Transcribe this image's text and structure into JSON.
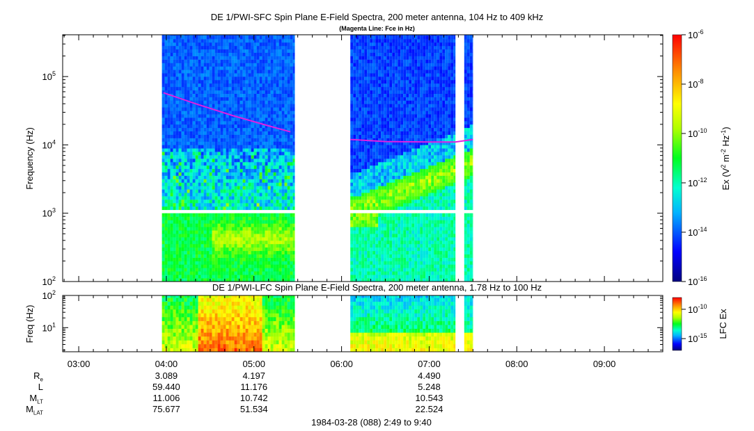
{
  "chart_data": [
    {
      "type": "heatmap",
      "title": "DE 1/PWI-SFC  Spin Plane E-Field Spectra, 200 meter antenna, 104 Hz to 409 kHz",
      "subtitle": "(Magenta Line: Fce in Hz)",
      "ylabel": "Frequency (Hz)",
      "yscale": "log",
      "ylim": [
        100,
        409000
      ],
      "yticks": [
        "10^2",
        "10^3",
        "10^4",
        "10^5"
      ],
      "xlim": [
        "02:49",
        "09:40"
      ],
      "xticks": [
        "03:00",
        "04:00",
        "05:00",
        "06:00",
        "07:00",
        "08:00",
        "09:00"
      ],
      "colorbar": {
        "label": "Ex (V^2 m^-2 Hz^-1)",
        "scale": "log",
        "range": [
          1e-16,
          1e-06
        ],
        "ticks": [
          "10^-6",
          "10^-8",
          "10^-10",
          "10^-12",
          "10^-14",
          "10^-16"
        ]
      },
      "data_intervals": [
        [
          "03:57",
          "05:28"
        ],
        [
          "06:06",
          "07:18"
        ],
        [
          "07:24",
          "07:30"
        ]
      ],
      "gap_band_hz": [
        900,
        1050
      ],
      "series": [
        {
          "name": "Fce",
          "color": "#e020e0",
          "points": [
            [
              "03:58",
              58000
            ],
            [
              "04:20",
              40000
            ],
            [
              "04:45",
              27000
            ],
            [
              "05:10",
              19000
            ],
            [
              "05:25",
              15500
            ]
          ]
        },
        {
          "name": "Fce",
          "color": "#e020e0",
          "points": [
            [
              "06:06",
              12000
            ],
            [
              "06:30",
              11200
            ],
            [
              "07:00",
              11000
            ],
            [
              "07:18",
              11000
            ],
            [
              "07:30",
              12000
            ]
          ]
        }
      ]
    },
    {
      "type": "heatmap",
      "title": "DE 1/PWI-LFC  Spin Plane E-Field Spectra, 200 meter antenna, 1.78 Hz to 100 Hz",
      "ylabel": "Freq (Hz)",
      "yscale": "log",
      "ylim": [
        1.78,
        100
      ],
      "yticks": [
        "10^1",
        "10^2"
      ],
      "xlim": [
        "02:49",
        "09:40"
      ],
      "colorbar": {
        "label": "LFC Ex",
        "scale": "log",
        "range": [
          1e-17,
          1e-08
        ],
        "ticks": [
          "10^-10",
          "10^-15"
        ]
      },
      "data_intervals": [
        [
          "03:57",
          "05:28"
        ],
        [
          "06:06",
          "07:18"
        ],
        [
          "07:24",
          "07:30"
        ]
      ]
    }
  ],
  "ephemeris": {
    "rows": [
      {
        "label": "R",
        "sub": "e",
        "values": [
          "3.089",
          "4.197",
          "4.490"
        ]
      },
      {
        "label": "L",
        "sub": "",
        "values": [
          "59.440",
          "11.176",
          "5.248"
        ]
      },
      {
        "label": "M",
        "sub": "LT",
        "values": [
          "11.006",
          "10.742",
          "10.543"
        ]
      },
      {
        "label": "M",
        "sub": "LAT",
        "values": [
          "75.677",
          "51.534",
          "22.524"
        ]
      }
    ],
    "times": [
      "04:00",
      "05:00",
      "07:00"
    ]
  },
  "footer": "1984-03-28 (088) 2:49 to 9:40",
  "colors": {
    "fce_line": "#e020e0"
  }
}
